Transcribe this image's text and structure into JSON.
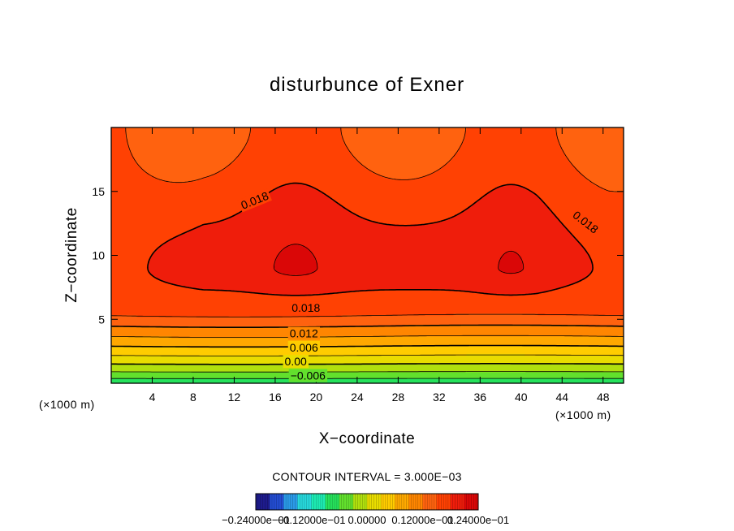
{
  "chart_data": {
    "type": "heatmap",
    "title": "disturbunce of Exner",
    "xlabel": "X−coordinate",
    "ylabel": "Z−coordinate",
    "xlim": [
      0,
      50
    ],
    "ylim": [
      0,
      20
    ],
    "x_ticks": [
      "4",
      "8",
      "12",
      "16",
      "20",
      "24",
      "28",
      "32",
      "36",
      "40",
      "44",
      "48"
    ],
    "x_tick_values": [
      4,
      8,
      12,
      16,
      20,
      24,
      28,
      32,
      36,
      40,
      44,
      48
    ],
    "y_ticks": [
      "5",
      "10",
      "15"
    ],
    "y_tick_values": [
      5,
      10,
      15
    ],
    "x_unit": "(×1000 m)",
    "y_unit": "(×1000 m)",
    "contour_interval_text": "CONTOUR INTERVAL = 3.000E−03",
    "contour_interval": 0.003,
    "contour_labels": [
      {
        "text": "0.018",
        "x": 14,
        "z": 14.3
      },
      {
        "text": "0.018",
        "x": 46.3,
        "z": 12.6
      },
      {
        "text": "0.018",
        "x": 19,
        "z": 5.9
      },
      {
        "text": "0.012",
        "x": 18.8,
        "z": 3.9
      },
      {
        "text": "0.006",
        "x": 18.8,
        "z": 2.8
      },
      {
        "text": "0.00",
        "x": 18,
        "z": 1.7
      },
      {
        "text": "−0.006",
        "x": 19.2,
        "z": 0.6
      }
    ],
    "value_range": [
      -0.024,
      0.024
    ],
    "colorbar_labels": [
      "−0.24000e−01",
      "−0.12000e−01",
      "0.00000",
      "0.12000e−01",
      "0.24000e−01"
    ],
    "colorscale": [
      "#1c0a5e",
      "#2030c8",
      "#2a8ce8",
      "#28d8e0",
      "#1cecb0",
      "#28e048",
      "#7ce020",
      "#d8e000",
      "#ffd800",
      "#ffb000",
      "#ff8800",
      "#ff6010",
      "#ff3a00",
      "#e81010",
      "#d00000"
    ],
    "series": [
      {
        "name": "left maximum",
        "x": 18,
        "z": 8.6,
        "value": 0.021
      },
      {
        "name": "right maximum",
        "x": 39,
        "z": 8.4,
        "value": 0.021
      }
    ],
    "grid": false
  }
}
